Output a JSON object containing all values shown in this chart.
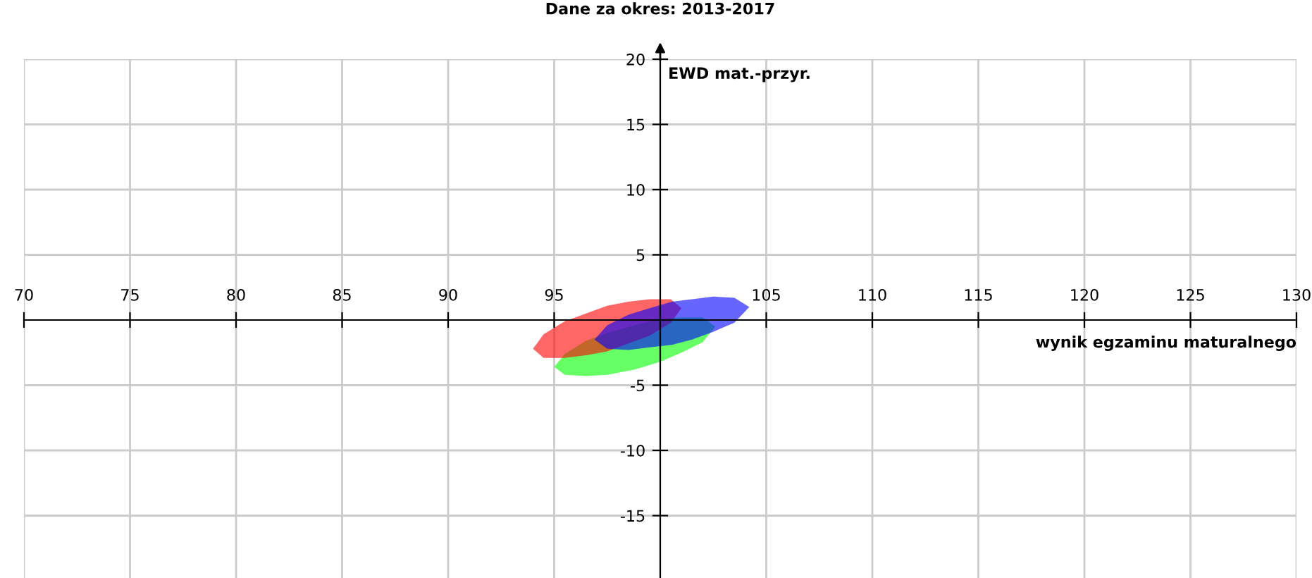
{
  "chart_data": {
    "type": "area",
    "title": "Dane za okres: 2013-2017",
    "xlabel": "wynik egzaminu maturalnego",
    "ylabel": "EWD mat.-przyr.",
    "xlim": [
      70,
      130
    ],
    "ylim": [
      -20,
      20
    ],
    "xticks": [
      70,
      75,
      80,
      85,
      90,
      95,
      105,
      110,
      115,
      120,
      125,
      130
    ],
    "yticks": [
      -15,
      -10,
      -5,
      5,
      10,
      15,
      20
    ],
    "grid": true,
    "series": [
      {
        "color": "#00ff00",
        "x": [
          95.0,
          95.5,
          96.5,
          97.5,
          98.8,
          100.0,
          101.0,
          102.0,
          102.6,
          102.0,
          101.0,
          100.0,
          98.8,
          97.5,
          96.5,
          95.5
        ],
        "values": [
          -3.6,
          -2.6,
          -1.6,
          -1.0,
          -0.4,
          0.1,
          0.2,
          0.2,
          -0.5,
          -1.7,
          -2.5,
          -3.2,
          -3.8,
          -4.2,
          -4.3,
          -4.2
        ]
      },
      {
        "color": "#ff0000",
        "x": [
          94.0,
          94.5,
          95.5,
          96.5,
          97.5,
          98.5,
          99.5,
          100.5,
          101.0,
          100.5,
          99.5,
          98.5,
          97.5,
          96.5,
          95.5,
          94.5
        ],
        "values": [
          -2.2,
          -1.1,
          -0.1,
          0.5,
          1.1,
          1.4,
          1.6,
          1.6,
          0.9,
          -0.2,
          -1.2,
          -1.8,
          -2.4,
          -2.7,
          -2.9,
          -2.9
        ]
      },
      {
        "color": "#0000ff",
        "x": [
          96.9,
          97.5,
          98.5,
          99.5,
          100.55,
          101.5,
          102.5,
          103.5,
          104.2,
          103.5,
          102.5,
          101.5,
          100.55,
          99.5,
          98.5,
          97.5
        ],
        "values": [
          -1.5,
          -0.4,
          0.4,
          0.9,
          1.4,
          1.6,
          1.8,
          1.7,
          1.0,
          -0.2,
          -0.9,
          -1.5,
          -1.9,
          -2.1,
          -2.3,
          -2.2
        ]
      }
    ]
  }
}
